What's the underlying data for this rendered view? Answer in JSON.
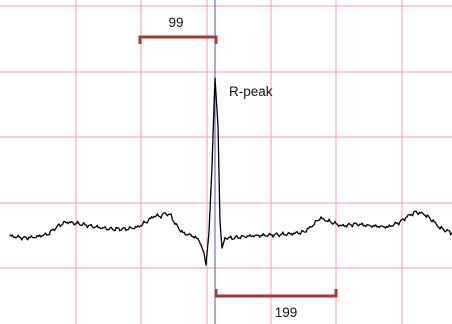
{
  "chart_data": {
    "type": "line",
    "title": "",
    "xlabel": "",
    "ylabel": "",
    "grid": true,
    "colors": {
      "grid": "#e8a3a8",
      "cursor": "#4a55d6",
      "caliper": "#a6393a",
      "trace": "#000000"
    },
    "annotations": {
      "peak_label": "R-peak",
      "interval_before": "99",
      "interval_after": "199"
    }
  }
}
